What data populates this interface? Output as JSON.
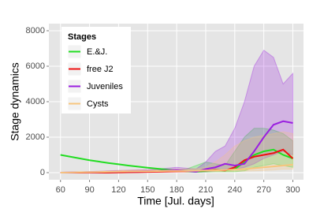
{
  "chart_data": {
    "type": "line",
    "x_label": "Time [Jul. days]",
    "y_label": "Stage dynamics",
    "legend_title": "Stages",
    "legend_position": "top-left",
    "grid": true,
    "xlim": [
      48,
      311
    ],
    "ylim": [
      -400,
      8400
    ],
    "xticks": [
      60,
      90,
      120,
      150,
      180,
      210,
      240,
      270,
      300
    ],
    "yticks": [
      0,
      2000,
      4000,
      6000,
      8000
    ],
    "x": [
      60,
      70,
      80,
      90,
      100,
      110,
      120,
      130,
      140,
      150,
      160,
      170,
      180,
      190,
      200,
      210,
      220,
      230,
      240,
      250,
      260,
      270,
      280,
      290,
      300
    ],
    "series": [
      {
        "name": "E.&J.",
        "color": "#22dd22",
        "values": [
          1000,
          900,
          800,
          700,
          620,
          540,
          470,
          400,
          340,
          280,
          220,
          170,
          120,
          80,
          50,
          100,
          150,
          120,
          200,
          600,
          1000,
          1200,
          1300,
          1000,
          800
        ],
        "upper": [
          1000,
          900,
          800,
          700,
          620,
          540,
          470,
          400,
          340,
          280,
          220,
          170,
          150,
          200,
          400,
          600,
          500,
          400,
          1200,
          2000,
          2500,
          2500,
          2400,
          2200,
          1800
        ],
        "lower": [
          1000,
          900,
          800,
          700,
          620,
          540,
          470,
          400,
          340,
          280,
          220,
          170,
          100,
          50,
          20,
          30,
          50,
          50,
          50,
          100,
          300,
          400,
          500,
          400,
          300
        ]
      },
      {
        "name": "free J2",
        "color": "#ee1111",
        "values": [
          0,
          0,
          0,
          0,
          0,
          0,
          10,
          20,
          30,
          40,
          50,
          60,
          70,
          80,
          90,
          120,
          150,
          120,
          300,
          700,
          900,
          1000,
          1100,
          1300,
          800
        ]
      },
      {
        "name": "Juveniles",
        "color": "#9a1fe0",
        "values": [
          0,
          10,
          20,
          30,
          40,
          50,
          60,
          70,
          80,
          90,
          100,
          120,
          150,
          100,
          50,
          200,
          300,
          500,
          400,
          500,
          1200,
          2000,
          2700,
          2900,
          2800
        ],
        "upper": [
          0,
          20,
          40,
          60,
          80,
          100,
          120,
          140,
          160,
          180,
          200,
          250,
          300,
          250,
          200,
          600,
          1200,
          1500,
          2500,
          4000,
          6000,
          6900,
          6500,
          5000,
          5600
        ],
        "lower": [
          0,
          0,
          0,
          0,
          0,
          0,
          20,
          30,
          40,
          40,
          50,
          60,
          70,
          50,
          20,
          50,
          100,
          200,
          200,
          300,
          500,
          800,
          1000,
          1200,
          1000
        ]
      },
      {
        "name": "Cysts",
        "color": "#f7c57e",
        "values": [
          0,
          10,
          20,
          30,
          40,
          50,
          60,
          70,
          80,
          80,
          90,
          100,
          100,
          100,
          110,
          120,
          130,
          150,
          180,
          200,
          250,
          300,
          350,
          400,
          450
        ],
        "upper": [
          0,
          20,
          40,
          60,
          80,
          100,
          120,
          140,
          160,
          160,
          180,
          200,
          200,
          200,
          220,
          300,
          600,
          1000,
          1500,
          1800,
          2000,
          2100,
          2200,
          2300,
          2200
        ],
        "lower": [
          0,
          0,
          0,
          0,
          0,
          0,
          10,
          20,
          30,
          30,
          40,
          40,
          40,
          40,
          50,
          60,
          60,
          70,
          80,
          90,
          100,
          120,
          150,
          200,
          200
        ]
      }
    ]
  }
}
